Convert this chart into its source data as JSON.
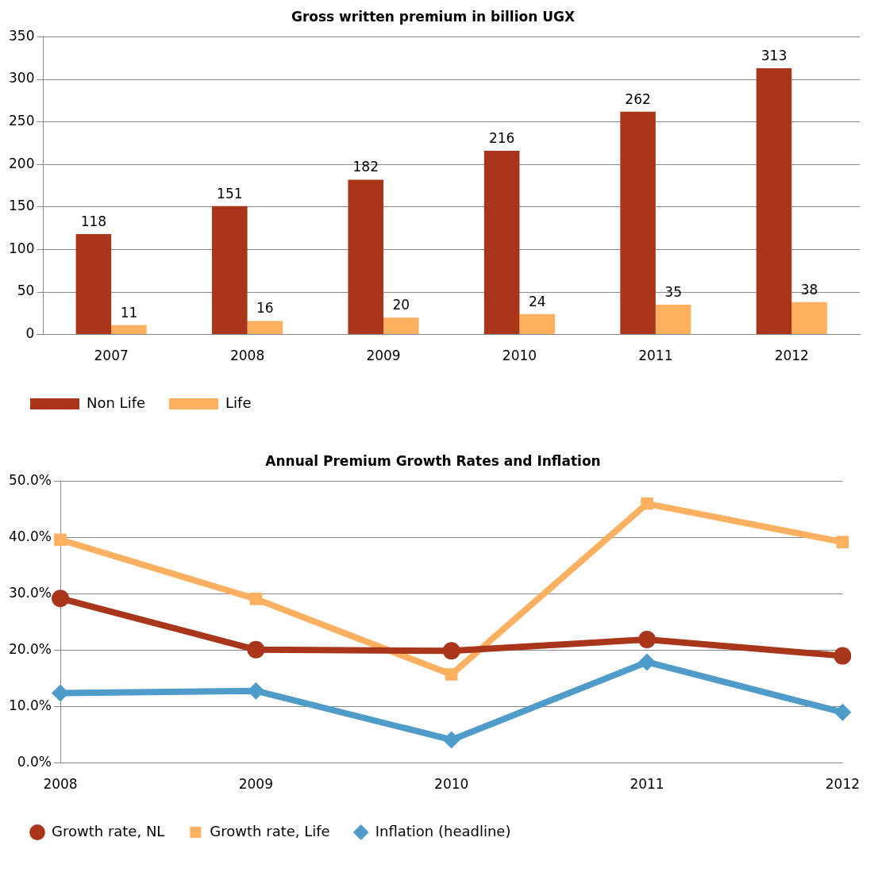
{
  "chart_data": [
    {
      "type": "bar",
      "title": "Gross written premium in billion UGX",
      "categories": [
        "2007",
        "2008",
        "2009",
        "2010",
        "2011",
        "2012"
      ],
      "series": [
        {
          "name": "Non Life",
          "color": "#a9361b",
          "values": [
            118,
            151,
            182,
            216,
            262,
            313
          ]
        },
        {
          "name": "Life",
          "color": "#fdb060",
          "values": [
            11,
            16,
            20,
            24,
            35,
            38
          ]
        }
      ],
      "ylim": [
        0,
        350
      ],
      "yticks": [
        0,
        50,
        100,
        150,
        200,
        250,
        300,
        350
      ],
      "grid": "y",
      "legend": "bottom",
      "data_labels": true
    },
    {
      "type": "line",
      "title": "Annual Premium Growth Rates and Inflation",
      "categories": [
        "2008",
        "2009",
        "2010",
        "2011",
        "2012"
      ],
      "series": [
        {
          "name": "Growth rate, NL",
          "color": "#a9361b",
          "marker": "circle",
          "values": [
            29.2,
            20.1,
            19.9,
            21.9,
            19.0
          ]
        },
        {
          "name": "Growth rate, Life",
          "color": "#fdb060",
          "marker": "square",
          "values": [
            39.6,
            29.1,
            15.7,
            46.0,
            39.2
          ]
        },
        {
          "name": "Inflation (headline)",
          "color": "#4f9ccb",
          "marker": "diamond",
          "values": [
            12.4,
            12.8,
            4.1,
            17.9,
            9.0
          ]
        }
      ],
      "ylim": [
        0,
        50
      ],
      "yticks": [
        {
          "value": 0,
          "label": "0.0%"
        },
        {
          "value": 10,
          "label": "10.0%"
        },
        {
          "value": 20,
          "label": "20.0%"
        },
        {
          "value": 30,
          "label": "30.0%"
        },
        {
          "value": 40,
          "label": "40.0%"
        },
        {
          "value": 50,
          "label": "50.0%"
        }
      ],
      "grid": "y",
      "legend": "bottom"
    }
  ]
}
